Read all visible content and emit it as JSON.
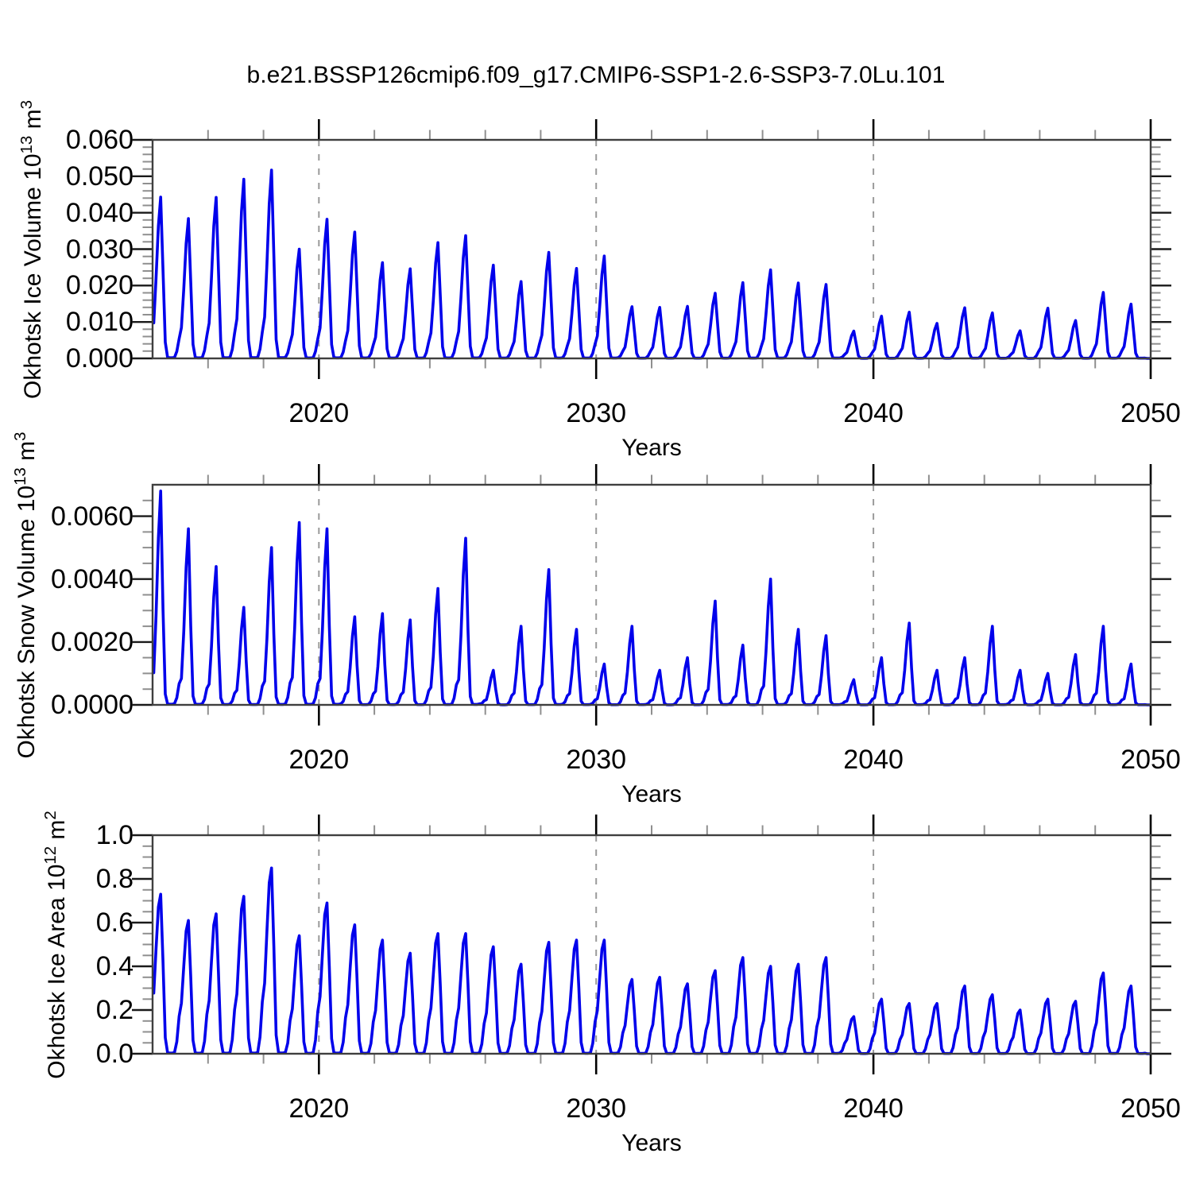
{
  "title": "b.e21.BSSP126cmip6.f09_g17.CMIP6-SSP1-2.6-SSP3-7.0Lu.101",
  "x_axis_label": "Years",
  "background": "#ffffff",
  "colors": {
    "line": "#0000eb",
    "dashed_grid": "#9a9a9a",
    "frame": "#3f3f3f",
    "major_tick": "#000000",
    "minor_tick": "#8f8f8f",
    "text": "#000000"
  },
  "x_axis": {
    "range": [
      2014,
      2050
    ],
    "major_ticks": [
      2020,
      2030,
      2040,
      2050
    ],
    "major_tick_labels": [
      "2020",
      "2030",
      "2040",
      "2050"
    ],
    "minor_tick_interval_years": 2,
    "dashed_gridlines": [
      2020,
      2030,
      2040
    ]
  },
  "chart_data": [
    {
      "type": "line",
      "name": "okhotsk-ice-volume",
      "ylabel_text": "Okhotsk Ice Volume 10^13 m^3",
      "ylabel_segments": [
        {
          "t": "Okhotsk Ice Volume 10"
        },
        {
          "t": "13",
          "sup": true
        },
        {
          "t": " m"
        },
        {
          "t": "3",
          "sup": true
        }
      ],
      "ylim": [
        0,
        0.06
      ],
      "y_major_step": 0.01,
      "y_minor_step": 0.002,
      "yticks": [
        {
          "v": 0.0,
          "label": "0.000"
        },
        {
          "v": 0.01,
          "label": "0.010"
        },
        {
          "v": 0.02,
          "label": "0.020"
        },
        {
          "v": 0.03,
          "label": "0.030"
        },
        {
          "v": 0.04,
          "label": "0.040"
        },
        {
          "v": 0.05,
          "label": "0.050"
        },
        {
          "v": 0.06,
          "label": "0.060"
        }
      ],
      "annual_max_years": [
        2014,
        2015,
        2016,
        2017,
        2018,
        2019,
        2020,
        2021,
        2022,
        2023,
        2024,
        2025,
        2026,
        2027,
        2028,
        2029,
        2030,
        2031,
        2032,
        2033,
        2034,
        2035,
        2036,
        2037,
        2038,
        2039,
        2040,
        2041,
        2042,
        2043,
        2044,
        2045,
        2046,
        2047,
        2048,
        2049
      ],
      "annual_max_values": [
        0.0443,
        0.0384,
        0.0442,
        0.0492,
        0.0517,
        0.03,
        0.0382,
        0.0347,
        0.0263,
        0.0246,
        0.0318,
        0.0337,
        0.0256,
        0.0211,
        0.0291,
        0.0247,
        0.0281,
        0.0142,
        0.014,
        0.0143,
        0.0179,
        0.0208,
        0.0243,
        0.0207,
        0.0203,
        0.0075,
        0.0116,
        0.0127,
        0.0096,
        0.0139,
        0.0125,
        0.0076,
        0.0138,
        0.0104,
        0.0181,
        0.0149
      ],
      "seasonal_profile": [
        0.22,
        0.5,
        0.82,
        1.0,
        0.55,
        0.1,
        0.006,
        0.004,
        0.004,
        0.006,
        0.05,
        0.14
      ],
      "peak_month": "April"
    },
    {
      "type": "line",
      "name": "okhotsk-snow-volume",
      "ylabel_text": "Okhotsk Snow Volume 10^13 m^3",
      "ylabel_segments": [
        {
          "t": "Okhotsk Snow Volume 10"
        },
        {
          "t": "13",
          "sup": true
        },
        {
          "t": " m"
        },
        {
          "t": "3",
          "sup": true
        }
      ],
      "ylim": [
        0,
        0.007
      ],
      "y_major_step": 0.002,
      "y_minor_step": 0.0005,
      "yticks": [
        {
          "v": 0.0,
          "label": "0.0000"
        },
        {
          "v": 0.002,
          "label": "0.0020"
        },
        {
          "v": 0.004,
          "label": "0.0040"
        },
        {
          "v": 0.006,
          "label": "0.0060"
        }
      ],
      "annual_max_years": [
        2014,
        2015,
        2016,
        2017,
        2018,
        2019,
        2020,
        2021,
        2022,
        2023,
        2024,
        2025,
        2026,
        2027,
        2028,
        2029,
        2030,
        2031,
        2032,
        2033,
        2034,
        2035,
        2036,
        2037,
        2038,
        2039,
        2040,
        2041,
        2042,
        2043,
        2044,
        2045,
        2046,
        2047,
        2048,
        2049
      ],
      "annual_max_values": [
        0.0068,
        0.0056,
        0.0044,
        0.0031,
        0.005,
        0.0058,
        0.0056,
        0.0028,
        0.0029,
        0.0027,
        0.0037,
        0.0053,
        0.0011,
        0.0025,
        0.0043,
        0.0024,
        0.0013,
        0.0025,
        0.0011,
        0.0015,
        0.0033,
        0.0019,
        0.004,
        0.0024,
        0.0022,
        0.0008,
        0.0015,
        0.0026,
        0.0011,
        0.0015,
        0.0025,
        0.0011,
        0.001,
        0.0016,
        0.0025,
        0.0013
      ],
      "seasonal_profile": [
        0.15,
        0.42,
        0.78,
        1.0,
        0.45,
        0.05,
        0.004,
        0.003,
        0.003,
        0.006,
        0.04,
        0.12
      ],
      "peak_month": "April"
    },
    {
      "type": "line",
      "name": "okhotsk-ice-area",
      "ylabel_text": "Okhotsk Ice Area 10^12 m^2",
      "ylabel_segments": [
        {
          "t": "Okhotsk Ice Area 10"
        },
        {
          "t": "12",
          "sup": true
        },
        {
          "t": " m"
        },
        {
          "t": "2",
          "sup": true
        }
      ],
      "ylim": [
        0,
        1.0
      ],
      "y_major_step": 0.2,
      "y_minor_step": 0.05,
      "yticks": [
        {
          "v": 0.0,
          "label": "0.0"
        },
        {
          "v": 0.2,
          "label": "0.2"
        },
        {
          "v": 0.4,
          "label": "0.4"
        },
        {
          "v": 0.6,
          "label": "0.6"
        },
        {
          "v": 0.8,
          "label": "0.8"
        },
        {
          "v": 1.0,
          "label": "1.0"
        }
      ],
      "annual_max_years": [
        2014,
        2015,
        2016,
        2017,
        2018,
        2019,
        2020,
        2021,
        2022,
        2023,
        2024,
        2025,
        2026,
        2027,
        2028,
        2029,
        2030,
        2031,
        2032,
        2033,
        2034,
        2035,
        2036,
        2037,
        2038,
        2039,
        2040,
        2041,
        2042,
        2043,
        2044,
        2045,
        2046,
        2047,
        2048,
        2049
      ],
      "annual_max_values": [
        0.73,
        0.61,
        0.64,
        0.72,
        0.85,
        0.54,
        0.69,
        0.59,
        0.52,
        0.46,
        0.55,
        0.55,
        0.49,
        0.41,
        0.51,
        0.52,
        0.52,
        0.34,
        0.35,
        0.32,
        0.38,
        0.44,
        0.4,
        0.41,
        0.44,
        0.17,
        0.25,
        0.23,
        0.23,
        0.31,
        0.27,
        0.2,
        0.25,
        0.24,
        0.37,
        0.31
      ],
      "seasonal_profile": [
        0.38,
        0.66,
        0.92,
        1.0,
        0.58,
        0.1,
        0.006,
        0.004,
        0.004,
        0.008,
        0.09,
        0.28
      ],
      "peak_month": "April"
    }
  ]
}
